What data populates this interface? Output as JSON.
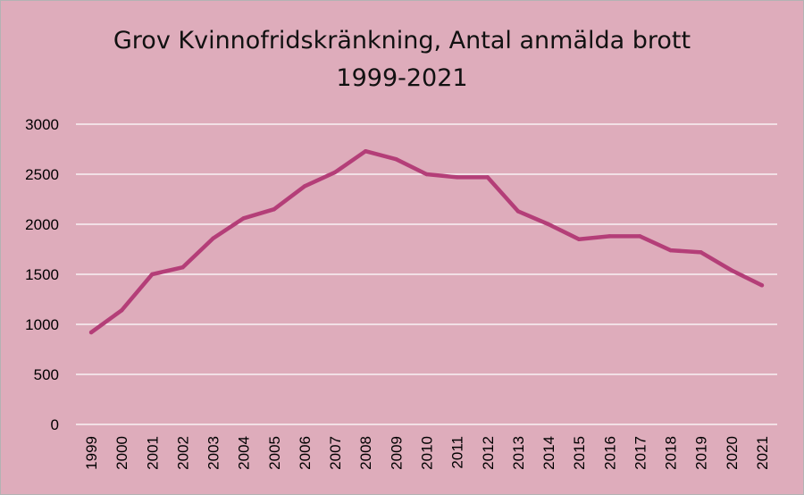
{
  "chart_data": {
    "type": "line",
    "title_line1": "Grov Kvinnofridskränkning,  Antal anmälda brott",
    "title_line2": "1999-2021",
    "categories": [
      "1999",
      "2000",
      "2001",
      "2002",
      "2003",
      "2004",
      "2005",
      "2006",
      "2007",
      "2008",
      "2009",
      "2010",
      "2011",
      "2012",
      "2013",
      "2014",
      "2015",
      "2016",
      "2017",
      "2018",
      "2019",
      "2020",
      "2021"
    ],
    "series": [
      {
        "values": [
          920,
          1140,
          1500,
          1570,
          1860,
          2060,
          2150,
          2380,
          2520,
          2730,
          2650,
          2500,
          2470,
          2470,
          2130,
          2000,
          1850,
          1880,
          1880,
          1740,
          1720,
          1540,
          1390
        ],
        "color": "#b43e78"
      }
    ],
    "ylim": [
      0,
      3000
    ],
    "yticks": [
      "0",
      "500",
      "1000",
      "1500",
      "2000",
      "2500",
      "3000"
    ],
    "grid": true,
    "background": "#deacbb",
    "gridline_color": "#ffffff"
  }
}
